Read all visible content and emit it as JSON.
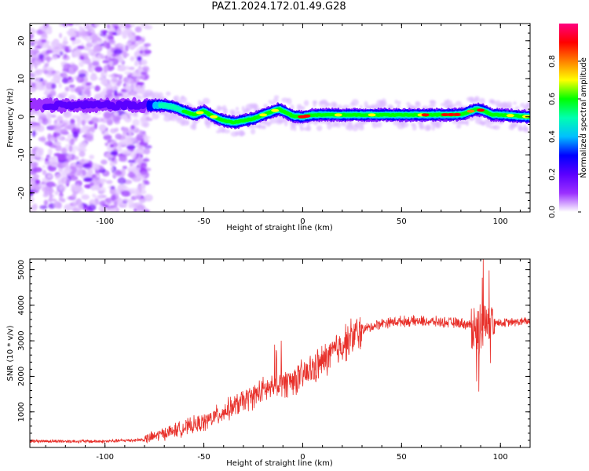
{
  "title": "PAZ1.2024.172.01.49.G28",
  "chart_data": [
    {
      "type": "heatmap",
      "xlabel": "Height of straight line (km)",
      "ylabel": "Frequency (Hz)",
      "xlim": [
        -138,
        115
      ],
      "ylim": [
        -25,
        24.5
      ],
      "xticks": [
        "-100",
        "-50",
        "0",
        "50",
        "100"
      ],
      "yticks": [
        "-20",
        "-10",
        "0",
        "10",
        "20"
      ],
      "colorbar": {
        "label": "Normalized spectral amplitude",
        "range": [
          0,
          1
        ],
        "ticks": [
          "0.0",
          "0.2",
          "0.4",
          "0.6",
          "0.8"
        ],
        "colors": [
          "#ffffff",
          "#9b30ff",
          "#5a00ff",
          "#0000ff",
          "#00c0ff",
          "#00ffb0",
          "#00ff00",
          "#ffff00",
          "#ff8000",
          "#ff0000",
          "#ff0080"
        ]
      },
      "ridge": {
        "x": [
          -138,
          -110,
          -95,
          -85,
          -75,
          -70,
          -65,
          -60,
          -55,
          -50,
          -45,
          -40,
          -35,
          -30,
          -25,
          -20,
          -15,
          -12,
          -8,
          -5,
          0,
          5,
          20,
          40,
          60,
          80,
          88,
          92,
          96,
          100,
          115
        ],
        "y": [
          3,
          3,
          3,
          3,
          3,
          3,
          2.5,
          1.5,
          0.5,
          1.5,
          0,
          -1,
          -1.5,
          -1,
          -0.5,
          0.5,
          1.5,
          2,
          1,
          0.2,
          0,
          0.5,
          0.5,
          0.5,
          0.5,
          0.6,
          2,
          1.5,
          0.5,
          0.5,
          0
        ]
      },
      "noise_region_x": [
        -138,
        -78
      ]
    },
    {
      "type": "line",
      "xlabel": "Height of straight line (km)",
      "ylabel": "SNR (10 * v/v)",
      "xlim": [
        -138,
        115
      ],
      "ylim": [
        0,
        5300
      ],
      "xticks": [
        "-100",
        "-50",
        "0",
        "50",
        "100"
      ],
      "yticks": [
        "1000",
        "2000",
        "3000",
        "4000",
        "5000"
      ],
      "series": [
        {
          "color": "#e8302a",
          "trend": {
            "x": [
              -138,
              -100,
              -80,
              -70,
              -60,
              -50,
              -40,
              -30,
              -20,
              -10,
              0,
              10,
              20,
              30,
              40,
              50,
              60,
              80,
              88,
              90,
              92,
              95,
              100,
              115
            ],
            "y": [
              180,
              170,
              220,
              400,
              550,
              700,
              1000,
              1300,
              1600,
              1800,
              2000,
              2400,
              2900,
              3300,
              3500,
              3550,
              3550,
              3500,
              3400,
              3300,
              3500,
              3550,
              3500,
              3550
            ]
          }
        }
      ]
    }
  ]
}
